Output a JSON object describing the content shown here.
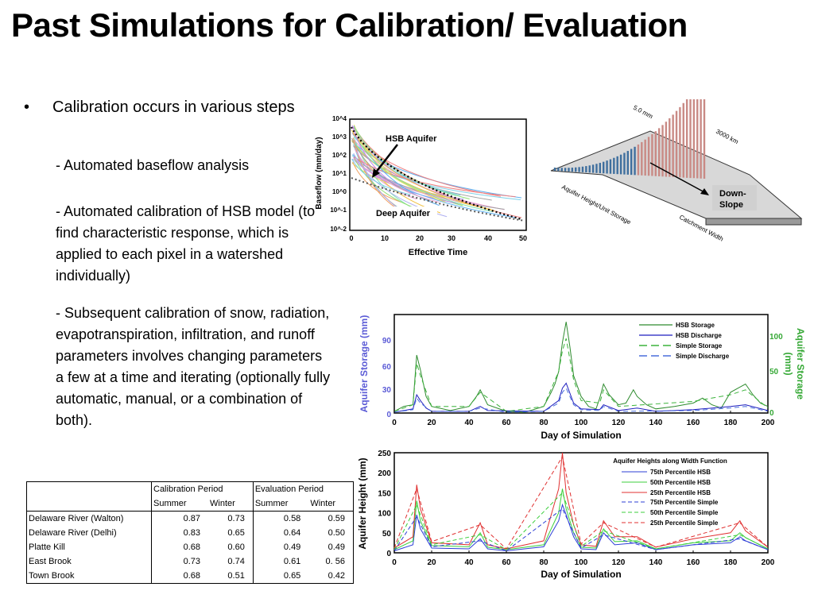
{
  "title": "Past Simulations for Calibration/ Evaluation",
  "bullet": {
    "dot": "•",
    "text": "Calibration occurs in various steps",
    "sub1": "- Automated baseflow analysis",
    "sub2": "- Automated calibration of HSB model (to find characteristic response, which is applied to each pixel in a watershed individually)",
    "sub3": "- Subsequent calibration  of snow, radiation, evapotranspiration, infiltration, and runoff parameters involves changing parameters a few at a time and iterating (optionally fully automatic, manual, or a combination of both)."
  },
  "baseflow_chart": {
    "ylabel": "Baseflow (mm/day)",
    "xlabel": "Effective Time",
    "yticks": [
      "10^4",
      "10^3",
      "10^2",
      "10^1",
      "10^0",
      "10^-1",
      "10^-2"
    ],
    "xticks": [
      "0",
      "10",
      "20",
      "30",
      "40",
      "50"
    ],
    "annotation_hsb": "HSB Aquifer",
    "annotation_deep": "Deep Aquifer"
  },
  "diagram_3d": {
    "label_mm": "5.0 mm",
    "label_km": "3000 km",
    "label_aquifer": "Aquifer Height/Unit Storage",
    "label_catchment": "Catchment Width",
    "label_down": "Down-",
    "label_slope": "Slope"
  },
  "chart_data": [
    {
      "type": "line",
      "xlabel": "Day of Simulation",
      "ylabel": "Aquifer Storage (mm)",
      "ylabel_right_1": "Aquifer Storage",
      "ylabel_right_2": "(mm)",
      "xlim": [
        0,
        200
      ],
      "xticks": [
        "0",
        "20",
        "40",
        "60",
        "80",
        "100",
        "120",
        "140",
        "160",
        "180",
        "200"
      ],
      "yticks_left": [
        "0",
        "30",
        "60",
        "90"
      ],
      "yticks_right": [
        "0",
        "50",
        "100"
      ],
      "legend": [
        "HSB Storage",
        "HSB Discharge",
        "Simple Storage",
        "Simple Discharge"
      ],
      "series": [
        {
          "name": "HSB Storage",
          "x": [
            0,
            5,
            10,
            12,
            14,
            17,
            20,
            30,
            40,
            44,
            46,
            50,
            60,
            70,
            80,
            84,
            86,
            88,
            90,
            92,
            94,
            96,
            100,
            104,
            108,
            110,
            112,
            115,
            120,
            124,
            128,
            130,
            135,
            140,
            150,
            160,
            165,
            170,
            175,
            180,
            184,
            188,
            192,
            196,
            200
          ],
          "y": [
            2,
            8,
            10,
            70,
            52,
            20,
            8,
            3,
            8,
            20,
            28,
            10,
            2,
            1,
            8,
            25,
            35,
            50,
            85,
            110,
            80,
            45,
            20,
            8,
            5,
            18,
            35,
            22,
            10,
            12,
            28,
            20,
            10,
            5,
            8,
            12,
            18,
            10,
            6,
            25,
            30,
            35,
            22,
            12,
            8
          ]
        },
        {
          "name": "HSB Discharge",
          "x": [
            0,
            10,
            12,
            14,
            17,
            20,
            40,
            46,
            50,
            80,
            88,
            90,
            92,
            96,
            100,
            110,
            112,
            120,
            130,
            140,
            160,
            180,
            188,
            200
          ],
          "y": [
            1,
            5,
            22,
            15,
            6,
            2,
            2,
            8,
            3,
            2,
            15,
            30,
            36,
            12,
            5,
            4,
            10,
            3,
            6,
            2,
            4,
            8,
            10,
            3
          ]
        },
        {
          "name": "Simple Storage",
          "x": [
            0,
            10,
            12,
            14,
            20,
            40,
            46,
            60,
            80,
            88,
            90,
            92,
            96,
            100,
            110,
            112,
            120,
            160,
            180,
            188,
            200
          ],
          "y": [
            2,
            10,
            60,
            45,
            8,
            8,
            25,
            2,
            8,
            50,
            75,
            90,
            40,
            15,
            12,
            28,
            8,
            14,
            22,
            28,
            6
          ]
        },
        {
          "name": "Simple Discharge",
          "x": [
            0,
            10,
            12,
            14,
            20,
            40,
            46,
            60,
            80,
            88,
            90,
            92,
            96,
            100,
            110,
            112,
            120,
            160,
            180,
            188,
            200
          ],
          "y": [
            1,
            4,
            18,
            12,
            2,
            2,
            6,
            1,
            2,
            12,
            25,
            30,
            10,
            4,
            3,
            8,
            2,
            3,
            6,
            8,
            2
          ]
        }
      ]
    },
    {
      "type": "line",
      "title": "Aquifer Heights along Width Function",
      "xlabel": "Day of Simulation",
      "ylabel": "Aquifer Height (mm)",
      "xlim": [
        0,
        200
      ],
      "ylim": [
        0,
        250
      ],
      "xticks": [
        "0",
        "20",
        "40",
        "60",
        "80",
        "100",
        "120",
        "140",
        "160",
        "180",
        "200"
      ],
      "yticks": [
        "0",
        "50",
        "100",
        "150",
        "200",
        "250"
      ],
      "legend": [
        "75th Percentile HSB",
        "50th Percentile HSB",
        "25th Percentile HSB",
        "75th Percentile Simple",
        "50th Percentile Simple",
        "25th Percentile Simple"
      ],
      "series": [
        {
          "name": "75th Percentile HSB",
          "x": [
            0,
            10,
            12,
            14,
            20,
            40,
            46,
            50,
            60,
            80,
            88,
            90,
            92,
            96,
            100,
            108,
            112,
            118,
            130,
            140,
            160,
            180,
            185,
            188,
            200
          ],
          "y": [
            5,
            20,
            95,
            60,
            12,
            10,
            35,
            10,
            5,
            15,
            80,
            120,
            95,
            40,
            10,
            8,
            50,
            20,
            25,
            8,
            20,
            25,
            40,
            30,
            8
          ]
        },
        {
          "name": "50th Percentile HSB",
          "x": [
            0,
            10,
            12,
            14,
            20,
            40,
            46,
            50,
            60,
            80,
            88,
            90,
            92,
            96,
            100,
            108,
            112,
            118,
            130,
            140,
            160,
            180,
            185,
            188,
            200
          ],
          "y": [
            8,
            30,
            130,
            80,
            18,
            15,
            50,
            14,
            8,
            20,
            100,
            160,
            110,
            50,
            14,
            12,
            60,
            28,
            30,
            10,
            25,
            30,
            50,
            38,
            10
          ]
        },
        {
          "name": "25th Percentile HSB",
          "x": [
            0,
            10,
            12,
            14,
            20,
            40,
            46,
            50,
            60,
            80,
            88,
            90,
            92,
            96,
            100,
            108,
            112,
            118,
            130,
            140,
            160,
            180,
            185,
            188,
            200
          ],
          "y": [
            12,
            40,
            170,
            110,
            25,
            20,
            75,
            20,
            10,
            30,
            160,
            250,
            150,
            70,
            20,
            16,
            80,
            40,
            40,
            14,
            35,
            50,
            80,
            55,
            14
          ]
        },
        {
          "name": "75th Percentile Simple",
          "x": [
            0,
            12,
            20,
            46,
            60,
            90,
            100,
            112,
            140,
            185,
            200
          ],
          "y": [
            5,
            90,
            15,
            30,
            5,
            110,
            12,
            45,
            8,
            35,
            8
          ]
        },
        {
          "name": "50th Percentile Simple",
          "x": [
            0,
            12,
            20,
            46,
            60,
            90,
            100,
            112,
            140,
            185,
            200
          ],
          "y": [
            8,
            120,
            20,
            45,
            8,
            150,
            16,
            55,
            10,
            45,
            10
          ]
        },
        {
          "name": "25th Percentile Simple",
          "x": [
            0,
            12,
            20,
            46,
            60,
            90,
            100,
            112,
            140,
            185,
            200
          ],
          "y": [
            12,
            160,
            28,
            70,
            10,
            240,
            22,
            75,
            14,
            75,
            14
          ]
        }
      ]
    }
  ],
  "colors": {
    "hsb_storage": "#2e8b2e",
    "hsb_discharge": "#1f1fbf",
    "simple_storage": "#3cb43c",
    "simple_discharge": "#4a6fdc",
    "p75": "#2d3fd6",
    "p50": "#3ccf3c",
    "p25": "#e03030",
    "left_axis": "#5b5bd6",
    "right_axis": "#35a835"
  },
  "table": {
    "header1": [
      "",
      "Calibration Period",
      "Evaluation Period"
    ],
    "header2": [
      "Summer",
      "Winter",
      "Summer",
      "Winter"
    ],
    "rows": [
      [
        "Delaware River (Walton)",
        "0.87",
        "0.73",
        "0.58",
        "0.59"
      ],
      [
        "Delaware River (Delhi)",
        "0.83",
        "0.65",
        "0.64",
        "0.50"
      ],
      [
        "Platte Kill",
        "0.68",
        "0.60",
        "0.49",
        "0.49"
      ],
      [
        "East Brook",
        "0.73",
        "0.74",
        "0.61",
        "0. 56"
      ],
      [
        "Town Brook",
        "0.68",
        "0.51",
        "0.65",
        "0.42"
      ]
    ]
  }
}
